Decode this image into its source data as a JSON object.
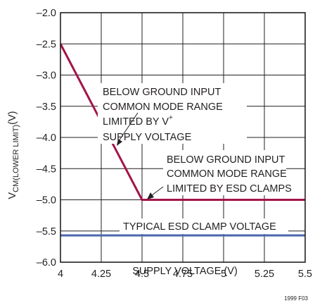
{
  "chart_data": {
    "type": "line",
    "x_label": "SUPPLY VOLTAGE (V)",
    "y_label_main": "V",
    "y_label_sub": "CM(LOWER LIMIT)",
    "y_label_unit": "(V)",
    "xlim": [
      4,
      5.5
    ],
    "ylim": [
      -6.0,
      -2.0
    ],
    "x_ticks": [
      4,
      4.25,
      4.5,
      4.75,
      5,
      5.25,
      5.5
    ],
    "x_tick_labels": [
      "4",
      "4.25",
      "4.5",
      "4.75",
      "5",
      "5.25",
      "5.5"
    ],
    "y_ticks": [
      -2.0,
      -2.5,
      -3.0,
      -3.5,
      -4.0,
      -4.5,
      -5.0,
      -5.5,
      -6.0
    ],
    "y_tick_labels": [
      "–2.0",
      "–2.5",
      "–3.0",
      "–3.5",
      "–4.0",
      "–4.5",
      "–5.0",
      "–5.5",
      "–6.0"
    ],
    "grid": true,
    "series": [
      {
        "color": "#a3144a",
        "points": [
          [
            4,
            -2.5
          ],
          [
            4.5,
            -5.0
          ],
          [
            5.5,
            -5.0
          ]
        ]
      },
      {
        "color": "#4a67ad",
        "points": [
          [
            4,
            -5.57
          ],
          [
            5.5,
            -5.57
          ]
        ]
      }
    ],
    "annotations": [
      {
        "lines": [
          "BELOW GROUND INPUT",
          "COMMON MODE RANGE",
          "LIMITED BY V",
          "SUPPLY VOLTAGE"
        ],
        "superscript": "+",
        "superscript_line": 2
      },
      {
        "lines": [
          "BELOW GROUND INPUT",
          "COMMON MODE RANGE",
          "LIMITED BY ESD CLAMPS"
        ]
      },
      {
        "lines": [
          "TYPICAL ESD CLAMP VOLTAGE"
        ]
      }
    ],
    "figure_id": "1999 F03"
  }
}
